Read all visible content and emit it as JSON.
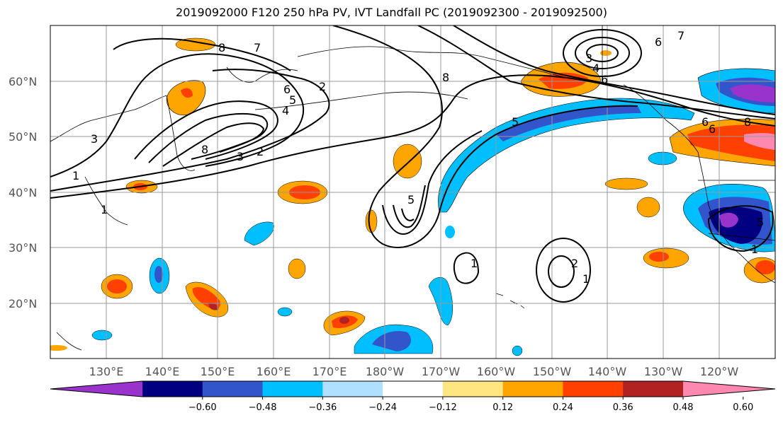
{
  "title": "2019092000 F120 250 hPa PV, IVT Landfall PC (2019092300 - 2019092500)",
  "map": {
    "lat_labels": [
      "60°N",
      "50°N",
      "40°N",
      "30°N",
      "20°N"
    ],
    "lon_labels": [
      "130°E",
      "140°E",
      "150°E",
      "160°E",
      "170°E",
      "180°W",
      "170°W",
      "160°W",
      "150°W",
      "140°W",
      "130°W",
      "120°W"
    ]
  },
  "contour_labels": [
    "8",
    "7",
    "6",
    "5",
    "4",
    "3",
    "2",
    "1",
    "1",
    "2",
    "3",
    "5",
    "8",
    "8",
    "6",
    "7",
    "6",
    "5",
    "4",
    "3",
    "6",
    "6",
    "8",
    "5",
    "1",
    "2",
    "1",
    "1"
  ],
  "colorbar": {
    "colors": [
      "#9933cc",
      "#000080",
      "#3355cc",
      "#00bfff",
      "#b0e0ff",
      "#ffffff",
      "#ffe680",
      "#ffa500",
      "#ff4000",
      "#b22222",
      "#ff88b0"
    ],
    "tick_labels": [
      "−0.60",
      "−0.48",
      "−0.36",
      "−0.24",
      "−0.12",
      "0.12",
      "0.24",
      "0.36",
      "0.48",
      "0.60"
    ]
  }
}
